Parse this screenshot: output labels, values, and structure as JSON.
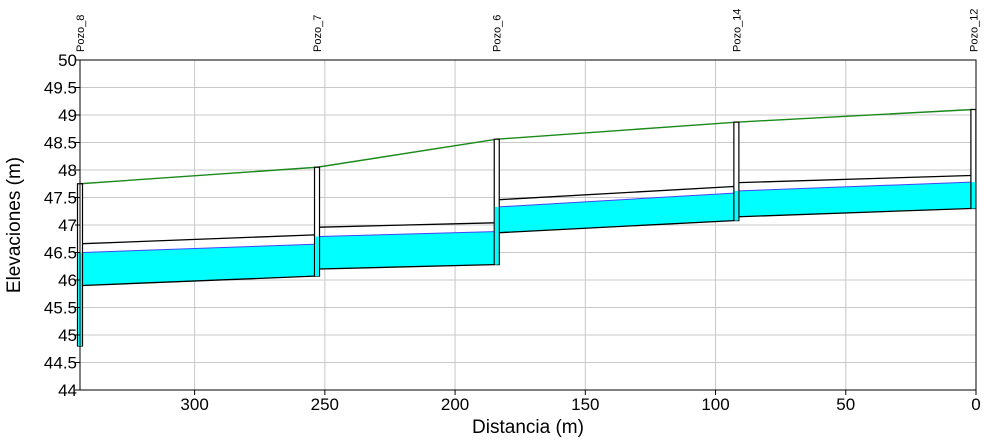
{
  "chart_data": {
    "type": "line",
    "title": "",
    "xlabel": "Distancia (m)",
    "ylabel": "Elevaciones (m)",
    "xlim": [
      344,
      0
    ],
    "ylim": [
      44,
      50
    ],
    "x_ticks": [
      300,
      250,
      200,
      150,
      100,
      50,
      0
    ],
    "y_ticks": [
      44,
      44.5,
      45,
      45.5,
      46,
      46.5,
      47,
      47.5,
      48,
      48.5,
      49,
      49.5,
      50
    ],
    "grid": true,
    "colors": {
      "ground": "#1a8a1a",
      "hgl": "#000000",
      "pipe_fill": "#00ffff",
      "pipe_edge": "#000000",
      "water_surface": "#4444ff",
      "grid": "#c8c8c8"
    },
    "nodes": [
      {
        "name": "Pozo_8",
        "x": 344,
        "invert": 44.8,
        "ground": 47.75
      },
      {
        "name": "Pozo_7",
        "x": 253,
        "invert": 46.07,
        "ground": 48.05
      },
      {
        "name": "Pozo_6",
        "x": 184,
        "invert": 46.28,
        "ground": 48.56
      },
      {
        "name": "Pozo_14",
        "x": 92,
        "invert": 47.08,
        "ground": 48.87
      },
      {
        "name": "Pozo_12",
        "x": 1,
        "invert": 47.3,
        "ground": 49.1
      }
    ],
    "links": [
      {
        "from": "Pozo_8",
        "to": "Pozo_7",
        "bottom": [
          45.9,
          46.07
        ],
        "top": [
          46.5,
          46.65
        ],
        "hgl": [
          46.66,
          46.82
        ]
      },
      {
        "from": "Pozo_7",
        "to": "Pozo_6",
        "bottom": [
          46.2,
          46.28
        ],
        "top": [
          46.79,
          46.88
        ],
        "hgl": [
          46.96,
          47.04
        ]
      },
      {
        "from": "Pozo_6",
        "to": "Pozo_14",
        "bottom": [
          46.86,
          47.08
        ],
        "top": [
          47.33,
          47.58
        ],
        "hgl": [
          47.46,
          47.7
        ]
      },
      {
        "from": "Pozo_14",
        "to": "Pozo_12",
        "bottom": [
          47.15,
          47.3
        ],
        "top": [
          47.62,
          47.78
        ],
        "hgl": [
          47.77,
          47.9
        ]
      }
    ]
  }
}
